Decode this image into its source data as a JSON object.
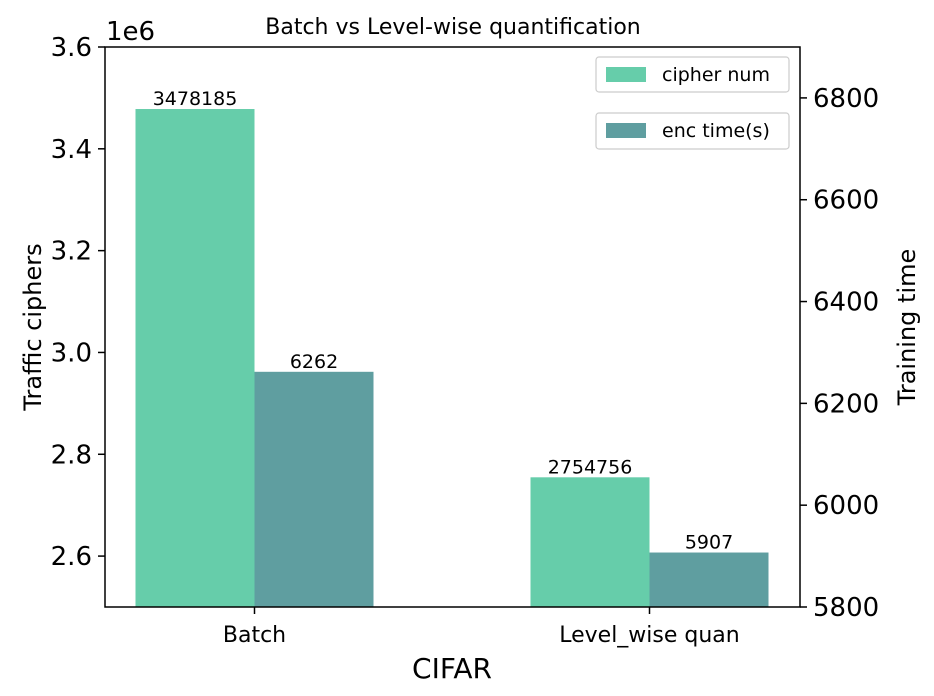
{
  "chart_data": {
    "type": "bar",
    "title": "Batch vs Level-wise quantification",
    "xlabel": "CIFAR",
    "ylabel_left": "Traffic ciphers",
    "ylabel_right": "Training time",
    "left_axis_multiplier": "1e6",
    "categories": [
      "Batch",
      "Level_wise quan"
    ],
    "series": [
      {
        "name": "cipher num",
        "axis": "left",
        "color": "#66cdaa",
        "values": [
          3478185,
          2754756
        ],
        "labels": [
          "3478185",
          "2754756"
        ]
      },
      {
        "name": "enc time(s)",
        "axis": "right",
        "color": "#5f9ea0",
        "values": [
          6262,
          5907
        ],
        "labels": [
          "6262",
          "5907"
        ]
      }
    ],
    "ylim_left": [
      2500000,
      3600000
    ],
    "ylim_right": [
      5800,
      6900
    ],
    "left_ticks": [
      2600000,
      2800000,
      3000000,
      3200000,
      3400000,
      3600000
    ],
    "left_tick_labels": [
      "2.6",
      "2.8",
      "3.0",
      "3.2",
      "3.4",
      "3.6"
    ],
    "right_ticks": [
      5800,
      6000,
      6200,
      6400,
      6600,
      6800
    ],
    "right_tick_labels": [
      "5800",
      "6000",
      "6200",
      "6400",
      "6600",
      "6800"
    ],
    "legend_placement": "top-right",
    "grid": false
  }
}
